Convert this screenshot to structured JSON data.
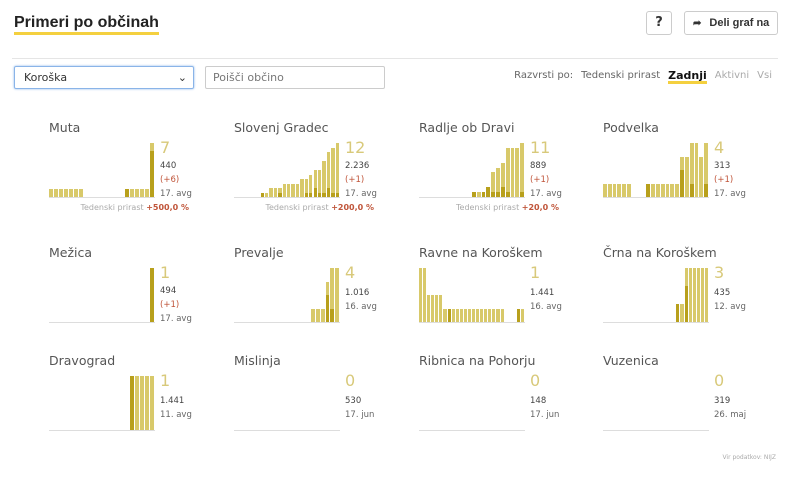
{
  "header": {
    "title": "Primeri po občinah",
    "help_label": "?",
    "share_label": "Deli graf na",
    "share_icon": "share-arrow-icon"
  },
  "filters": {
    "region": "Koroška",
    "search_placeholder": "Poišči občino"
  },
  "sort": {
    "label": "Razvrsti po:",
    "options": [
      "Tedenski prirast",
      "Zadnji",
      "Aktivni",
      "Vsi"
    ],
    "active": "Zadnji"
  },
  "growth_label": "Tedenski prirast",
  "colors": {
    "accent": "#f4d03f",
    "bar_light": "#d8c96a",
    "bar_dark": "#b8a01c",
    "increase": "#c0553a"
  },
  "municipalities": [
    {
      "name": "Muta",
      "latest": "7",
      "total": "440",
      "delta": "(+6)",
      "date": "17. avg",
      "growth": "+500,0 %",
      "bars": [
        1,
        1,
        1,
        1,
        1,
        1,
        1,
        0,
        0,
        0,
        0,
        0,
        0,
        0,
        0,
        1,
        1,
        1,
        1,
        1,
        7
      ],
      "dark": [
        0,
        0,
        0,
        0,
        0,
        0,
        0,
        0,
        0,
        0,
        0,
        0,
        0,
        0,
        0,
        1,
        0,
        0,
        0,
        0,
        6
      ]
    },
    {
      "name": "Slovenj Gradec",
      "latest": "12",
      "total": "2.236",
      "delta": "(+1)",
      "date": "17. avg",
      "growth": "+200,0 %",
      "bars": [
        0,
        0,
        0,
        0,
        0,
        0,
        1,
        1,
        2,
        2,
        2,
        3,
        3,
        3,
        3,
        4,
        4,
        5,
        6,
        6,
        8,
        10,
        11,
        12
      ],
      "dark": [
        0,
        0,
        0,
        0,
        0,
        0,
        1,
        0,
        0,
        0,
        1,
        0,
        0,
        0,
        0,
        0,
        1,
        1,
        2,
        1,
        1,
        2,
        1,
        1
      ]
    },
    {
      "name": "Radlje ob Dravi",
      "latest": "11",
      "total": "889",
      "delta": "(+1)",
      "date": "17. avg",
      "growth": "+20,0 %",
      "bars": [
        0,
        0,
        0,
        0,
        0,
        0,
        0,
        0,
        0,
        0,
        0,
        1,
        1,
        1,
        2,
        5,
        6,
        7,
        10,
        10,
        10,
        11
      ],
      "dark": [
        0,
        0,
        0,
        0,
        0,
        0,
        0,
        0,
        0,
        0,
        0,
        1,
        0,
        1,
        2,
        1,
        1,
        2,
        1,
        0,
        0,
        1
      ]
    },
    {
      "name": "Podvelka",
      "latest": "4",
      "total": "313",
      "delta": "(+1)",
      "date": "17. avg",
      "bars": [
        1,
        1,
        1,
        1,
        1,
        1,
        0,
        0,
        0,
        1,
        1,
        1,
        1,
        1,
        1,
        1,
        3,
        3,
        4,
        4,
        3,
        4
      ],
      "dark": [
        0,
        0,
        0,
        0,
        0,
        0,
        0,
        0,
        0,
        1,
        0,
        0,
        0,
        0,
        0,
        0,
        2,
        0,
        1,
        0,
        0,
        1
      ]
    },
    {
      "name": "Mežica",
      "latest": "1",
      "total": "494",
      "delta": "(+1)",
      "date": "17. avg",
      "bars": [
        0,
        0,
        0,
        0,
        0,
        0,
        0,
        0,
        0,
        0,
        0,
        0,
        0,
        0,
        0,
        0,
        0,
        0,
        0,
        0,
        1
      ],
      "dark": [
        0,
        0,
        0,
        0,
        0,
        0,
        0,
        0,
        0,
        0,
        0,
        0,
        0,
        0,
        0,
        0,
        0,
        0,
        0,
        0,
        1
      ]
    },
    {
      "name": "Prevalje",
      "latest": "4",
      "total": "1.016",
      "date": "16. avg",
      "bars": [
        0,
        0,
        0,
        0,
        0,
        0,
        0,
        0,
        0,
        0,
        0,
        0,
        0,
        0,
        0,
        0,
        1,
        1,
        1,
        3,
        4,
        4
      ],
      "dark": [
        0,
        0,
        0,
        0,
        0,
        0,
        0,
        0,
        0,
        0,
        0,
        0,
        0,
        0,
        0,
        0,
        0,
        0,
        0,
        2,
        1,
        0
      ]
    },
    {
      "name": "Ravne na Koroškem",
      "latest": "1",
      "total": "1.441",
      "date": "16. avg",
      "bars": [
        4,
        4,
        2,
        2,
        2,
        2,
        1,
        1,
        1,
        1,
        1,
        1,
        1,
        1,
        1,
        1,
        1,
        1,
        1,
        1,
        1,
        0,
        0,
        0,
        1,
        1
      ],
      "dark": [
        0,
        0,
        0,
        0,
        0,
        0,
        0,
        1,
        0,
        0,
        0,
        0,
        0,
        0,
        0,
        0,
        0,
        0,
        0,
        0,
        0,
        0,
        0,
        0,
        1,
        0
      ]
    },
    {
      "name": "Črna na Koroškem",
      "latest": "3",
      "total": "435",
      "date": "12. avg",
      "bars": [
        0,
        0,
        0,
        0,
        0,
        0,
        0,
        0,
        0,
        0,
        0,
        0,
        0,
        0,
        0,
        0,
        0,
        0,
        1,
        1,
        3,
        3,
        3,
        3,
        3,
        3
      ],
      "dark": [
        0,
        0,
        0,
        0,
        0,
        0,
        0,
        0,
        0,
        0,
        0,
        0,
        0,
        0,
        0,
        0,
        0,
        0,
        1,
        0,
        2,
        0,
        0,
        0,
        0,
        0
      ]
    },
    {
      "name": "Dravograd",
      "latest": "1",
      "total": "1.441",
      "date": "11. avg",
      "bars": [
        0,
        0,
        0,
        0,
        0,
        0,
        0,
        0,
        0,
        0,
        0,
        0,
        0,
        0,
        0,
        0,
        1,
        1,
        1,
        1,
        1
      ],
      "dark": [
        0,
        0,
        0,
        0,
        0,
        0,
        0,
        0,
        0,
        0,
        0,
        0,
        0,
        0,
        0,
        0,
        1,
        0,
        0,
        0,
        0
      ]
    },
    {
      "name": "Mislinja",
      "latest": "0",
      "total": "530",
      "date": "17. jun",
      "bars": [],
      "dark": []
    },
    {
      "name": "Ribnica na Pohorju",
      "latest": "0",
      "total": "148",
      "date": "17. jun",
      "bars": [],
      "dark": []
    },
    {
      "name": "Vuzenica",
      "latest": "0",
      "total": "319",
      "date": "26. maj",
      "bars": [],
      "dark": []
    }
  ],
  "footer": {
    "source": "Vir podatkov: NIJZ"
  }
}
